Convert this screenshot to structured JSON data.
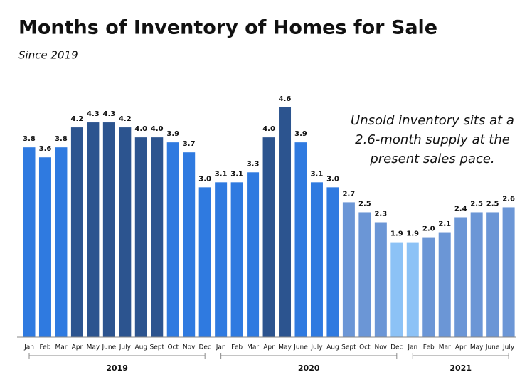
{
  "chart_data": {
    "type": "bar",
    "title": "Months of Inventory of Homes for Sale",
    "subtitle": "Since 2019",
    "annotation": [
      "Unsold inventory sits at a",
      "2.6-month supply at the",
      "present sales pace."
    ],
    "ylim": [
      0,
      4.6
    ],
    "groups": [
      {
        "label": "2019",
        "categories": [
          "Jan",
          "Feb",
          "Mar",
          "Apr",
          "May",
          "June",
          "July",
          "Aug",
          "Sept",
          "Oct",
          "Nov",
          "Dec"
        ],
        "values": [
          3.8,
          3.6,
          3.8,
          4.2,
          4.3,
          4.3,
          4.2,
          4.0,
          4.0,
          3.9,
          3.7,
          3.0
        ],
        "value_labels": [
          "3.8",
          "3.6",
          "3.8",
          "4.2",
          "4.3",
          "4.3",
          "4.2",
          "4.0",
          "4.0",
          "3.9",
          "3.7",
          "3.0"
        ],
        "colors": [
          "#2f7ae0",
          "#2f7ae0",
          "#2f7ae0",
          "#2c548f",
          "#2c548f",
          "#2c548f",
          "#2c548f",
          "#2c548f",
          "#2c548f",
          "#2f7ae0",
          "#2f7ae0",
          "#2f7ae0"
        ]
      },
      {
        "label": "2020",
        "categories": [
          "Jan",
          "Feb",
          "Mar",
          "Apr",
          "May",
          "June",
          "July",
          "Aug",
          "Sept",
          "Oct",
          "Nov",
          "Dec"
        ],
        "values": [
          3.1,
          3.1,
          3.3,
          4.0,
          4.6,
          3.9,
          3.1,
          3.0,
          2.7,
          2.5,
          2.3,
          1.9
        ],
        "value_labels": [
          "3.1",
          "3.1",
          "3.3",
          "4.0",
          "4.6",
          "3.9",
          "3.1",
          "3.0",
          "2.7",
          "2.5",
          "2.3",
          "1.9"
        ],
        "colors": [
          "#2f7ae0",
          "#2f7ae0",
          "#2f7ae0",
          "#2c548f",
          "#2c548f",
          "#2f7ae0",
          "#2f7ae0",
          "#2f7ae0",
          "#6b96d6",
          "#6b96d6",
          "#6b96d6",
          "#8cc2f6"
        ]
      },
      {
        "label": "2021",
        "categories": [
          "Jan",
          "Feb",
          "Mar",
          "Apr",
          "May",
          "June",
          "July"
        ],
        "values": [
          1.9,
          2.0,
          2.1,
          2.4,
          2.5,
          2.5,
          2.6
        ],
        "value_labels": [
          "1.9",
          "2.0",
          "2.1",
          "2.4",
          "2.5",
          "2.5",
          "2.6"
        ],
        "colors": [
          "#8cc2f6",
          "#6b96d6",
          "#6b96d6",
          "#6b96d6",
          "#6b96d6",
          "#6b96d6",
          "#6b96d6"
        ]
      }
    ]
  }
}
